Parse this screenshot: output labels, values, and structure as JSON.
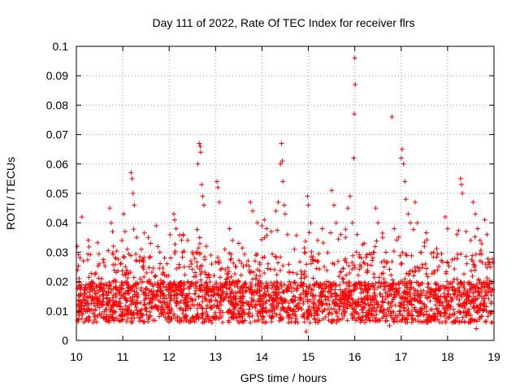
{
  "chart_data": {
    "type": "scatter",
    "title": "Day 111 of 2022, Rate Of TEC Index for receiver flrs",
    "xlabel": "GPS time / hours",
    "ylabel": "ROTI / TECUs",
    "xlim": [
      10,
      19
    ],
    "ylim": [
      0,
      0.1
    ],
    "x_ticks": [
      "10",
      "11",
      "12",
      "13",
      "14",
      "15",
      "16",
      "17",
      "18",
      "19"
    ],
    "y_ticks": [
      "0",
      "0.01",
      "0.02",
      "0.03",
      "0.04",
      "0.05",
      "0.06",
      "0.07",
      "0.08",
      "0.09",
      "0.1"
    ],
    "grid": true,
    "marker": "+",
    "series_color": "#ff0000",
    "series": [
      {
        "name": "ROTI",
        "points": [
          [
            10.02,
            0.032
          ],
          [
            10.08,
            0.028
          ],
          [
            10.12,
            0.042
          ],
          [
            10.15,
            0.027
          ],
          [
            10.1,
            0.012
          ],
          [
            10.3,
            0.015
          ],
          [
            10.5,
            0.009
          ],
          [
            10.72,
            0.045
          ],
          [
            10.75,
            0.04
          ],
          [
            10.78,
            0.037
          ],
          [
            10.8,
            0.032
          ],
          [
            10.85,
            0.028
          ],
          [
            10.95,
            0.026
          ],
          [
            10.98,
            0.034
          ],
          [
            11.02,
            0.043
          ],
          [
            11.05,
            0.037
          ],
          [
            11.1,
            0.031
          ],
          [
            11.18,
            0.057
          ],
          [
            11.2,
            0.055
          ],
          [
            11.22,
            0.05
          ],
          [
            11.25,
            0.046
          ],
          [
            11.3,
            0.035
          ],
          [
            11.4,
            0.031
          ],
          [
            11.55,
            0.035
          ],
          [
            11.6,
            0.033
          ],
          [
            11.72,
            0.039
          ],
          [
            11.8,
            0.03
          ],
          [
            11.9,
            0.028
          ],
          [
            12.1,
            0.043
          ],
          [
            12.12,
            0.041
          ],
          [
            12.15,
            0.038
          ],
          [
            12.3,
            0.036
          ],
          [
            12.4,
            0.034
          ],
          [
            12.5,
            0.03
          ],
          [
            12.62,
            0.06
          ],
          [
            12.65,
            0.067
          ],
          [
            12.67,
            0.066
          ],
          [
            12.68,
            0.064
          ],
          [
            12.7,
            0.053
          ],
          [
            12.72,
            0.049
          ],
          [
            12.75,
            0.046
          ],
          [
            12.8,
            0.032
          ],
          [
            12.9,
            0.029
          ],
          [
            13.03,
            0.054
          ],
          [
            13.05,
            0.052
          ],
          [
            13.08,
            0.047
          ],
          [
            13.2,
            0.031
          ],
          [
            13.3,
            0.038
          ],
          [
            13.5,
            0.033
          ],
          [
            13.75,
            0.047
          ],
          [
            13.8,
            0.044
          ],
          [
            13.9,
            0.04
          ],
          [
            14.0,
            0.039
          ],
          [
            14.05,
            0.041
          ],
          [
            14.1,
            0.038
          ],
          [
            14.2,
            0.037
          ],
          [
            14.3,
            0.044
          ],
          [
            14.35,
            0.047
          ],
          [
            14.4,
            0.06
          ],
          [
            14.42,
            0.067
          ],
          [
            14.44,
            0.061
          ],
          [
            14.45,
            0.054
          ],
          [
            14.48,
            0.046
          ],
          [
            14.5,
            0.043
          ],
          [
            14.55,
            0.036
          ],
          [
            14.7,
            0.031
          ],
          [
            14.98,
            0.049
          ],
          [
            15.0,
            0.046
          ],
          [
            15.05,
            0.04
          ],
          [
            15.2,
            0.034
          ],
          [
            15.3,
            0.038
          ],
          [
            15.5,
            0.051
          ],
          [
            15.55,
            0.046
          ],
          [
            15.6,
            0.04
          ],
          [
            15.7,
            0.036
          ],
          [
            15.8,
            0.035
          ],
          [
            15.85,
            0.045
          ],
          [
            15.9,
            0.049
          ],
          [
            15.95,
            0.04
          ],
          [
            15.98,
            0.062
          ],
          [
            16.0,
            0.096
          ],
          [
            16.01,
            0.087
          ],
          [
            15.99,
            0.077
          ],
          [
            16.05,
            0.036
          ],
          [
            16.2,
            0.033
          ],
          [
            16.45,
            0.045
          ],
          [
            16.5,
            0.04
          ],
          [
            16.6,
            0.035
          ],
          [
            16.8,
            0.076
          ],
          [
            16.85,
            0.038
          ],
          [
            17.0,
            0.062
          ],
          [
            17.02,
            0.065
          ],
          [
            17.05,
            0.06
          ],
          [
            17.08,
            0.054
          ],
          [
            17.1,
            0.048
          ],
          [
            17.15,
            0.043
          ],
          [
            17.2,
            0.04
          ],
          [
            17.3,
            0.047
          ],
          [
            17.35,
            0.04
          ],
          [
            17.5,
            0.032
          ],
          [
            17.7,
            0.03
          ],
          [
            17.95,
            0.042
          ],
          [
            18.0,
            0.038
          ],
          [
            18.2,
            0.036
          ],
          [
            18.28,
            0.055
          ],
          [
            18.3,
            0.053
          ],
          [
            18.32,
            0.05
          ],
          [
            18.4,
            0.037
          ],
          [
            18.55,
            0.047
          ],
          [
            18.6,
            0.043
          ],
          [
            18.65,
            0.038
          ],
          [
            18.7,
            0.034
          ],
          [
            18.8,
            0.041
          ],
          [
            18.85,
            0.036
          ],
          [
            18.62,
            0.004
          ],
          [
            14.95,
            0.003
          ],
          [
            16.75,
            0.005
          ]
        ]
      }
    ]
  }
}
